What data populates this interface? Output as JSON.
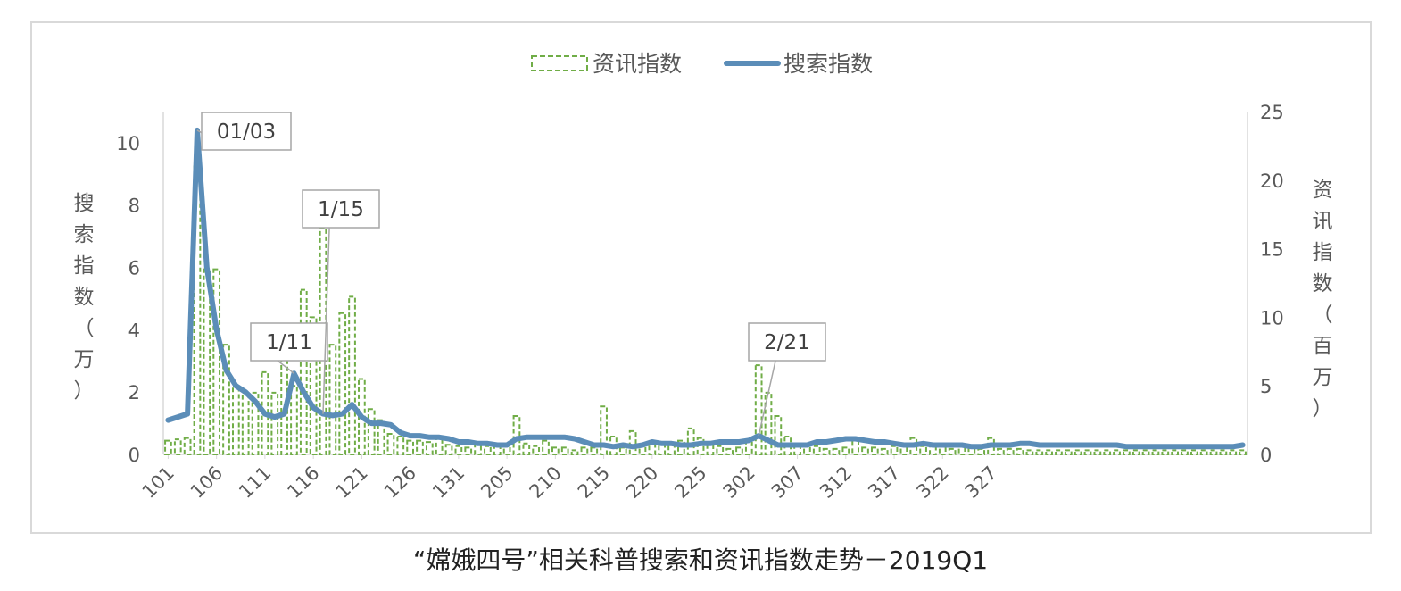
{
  "caption": "“嫦娥四号”相关科普搜索和资讯指数走势－2019Q1",
  "colors": {
    "news_bar": "#70ad47",
    "search_line": "#5b8db8",
    "axis_text": "#595959",
    "frame": "#d9d9d9"
  },
  "chart_data": {
    "type": "bar",
    "title": "",
    "left_axis_label": "搜索指数（万）",
    "right_axis_label": "资讯指数（百万）",
    "left_ylim": [
      0,
      11
    ],
    "right_ylim": [
      0,
      25
    ],
    "left_ticks": [
      "0",
      "2",
      "4",
      "6",
      "8",
      "10"
    ],
    "right_ticks": [
      "0",
      "5",
      "10",
      "15",
      "20",
      "25"
    ],
    "x_tick_labels": [
      "101",
      "106",
      "111",
      "116",
      "121",
      "126",
      "131",
      "205",
      "210",
      "215",
      "220",
      "225",
      "302",
      "307",
      "312",
      "317",
      "322",
      "327"
    ],
    "x_tick_every": 5,
    "legend": [
      {
        "name": "资讯指数",
        "style": "dashed-bar"
      },
      {
        "name": "搜索指数",
        "style": "line"
      }
    ],
    "series": [
      {
        "name": "资讯指数",
        "kind": "bar",
        "axis": "right",
        "values": [
          1.0,
          1.1,
          1.2,
          21.0,
          13.5,
          13.5,
          8.0,
          5.0,
          4.5,
          4.5,
          6.0,
          4.5,
          7.0,
          5.0,
          12.0,
          10.0,
          16.5,
          8.0,
          10.3,
          11.5,
          5.5,
          3.3,
          2.5,
          1.5,
          1.3,
          1.0,
          1.0,
          0.9,
          1.2,
          0.7,
          0.6,
          0.5,
          0.7,
          0.6,
          0.8,
          0.6,
          2.8,
          0.8,
          0.6,
          1.0,
          0.5,
          0.5,
          0.3,
          0.5,
          0.5,
          3.5,
          1.3,
          0.5,
          1.7,
          0.6,
          0.9,
          0.9,
          0.9,
          1.0,
          1.9,
          1.2,
          0.8,
          0.6,
          0.4,
          0.5,
          1.0,
          6.5,
          4.5,
          2.8,
          1.3,
          0.8,
          0.6,
          0.6,
          0.4,
          0.4,
          0.5,
          1.1,
          0.5,
          0.5,
          0.4,
          0.6,
          0.6,
          1.2,
          0.6,
          0.7,
          0.6,
          0.4,
          0.6,
          0.5,
          0.4,
          1.2,
          0.4,
          0.4,
          0.4,
          0.3,
          0.3,
          0.3,
          0.3,
          0.3,
          0.3,
          0.3,
          0.3,
          0.3,
          0.3,
          0.3,
          0.3,
          0.3,
          0.3,
          0.3,
          0.3,
          0.3,
          0.3,
          0.3,
          0.3,
          0.3,
          0.3,
          0.3
        ]
      },
      {
        "name": "搜索指数",
        "kind": "line",
        "axis": "left",
        "values": [
          1.1,
          1.2,
          1.3,
          10.4,
          6.0,
          4.0,
          2.7,
          2.2,
          2.0,
          1.7,
          1.3,
          1.2,
          1.3,
          2.6,
          2.0,
          1.5,
          1.3,
          1.25,
          1.3,
          1.6,
          1.2,
          1.0,
          1.0,
          0.95,
          0.7,
          0.6,
          0.6,
          0.55,
          0.55,
          0.5,
          0.4,
          0.4,
          0.35,
          0.35,
          0.3,
          0.3,
          0.5,
          0.55,
          0.55,
          0.55,
          0.55,
          0.55,
          0.5,
          0.4,
          0.3,
          0.3,
          0.25,
          0.3,
          0.25,
          0.3,
          0.4,
          0.35,
          0.35,
          0.3,
          0.3,
          0.35,
          0.35,
          0.4,
          0.4,
          0.4,
          0.45,
          0.6,
          0.45,
          0.3,
          0.3,
          0.3,
          0.3,
          0.4,
          0.4,
          0.45,
          0.5,
          0.5,
          0.45,
          0.4,
          0.4,
          0.35,
          0.3,
          0.3,
          0.35,
          0.3,
          0.3,
          0.3,
          0.3,
          0.25,
          0.25,
          0.3,
          0.3,
          0.3,
          0.35,
          0.35,
          0.3,
          0.3,
          0.3,
          0.3,
          0.3,
          0.3,
          0.3,
          0.3,
          0.3,
          0.25,
          0.25,
          0.25,
          0.25,
          0.25,
          0.25,
          0.25,
          0.25,
          0.25,
          0.25,
          0.25,
          0.25,
          0.3
        ]
      }
    ],
    "annotations": [
      {
        "text": "01/03",
        "index": 3
      },
      {
        "text": "1/11",
        "index": 13
      },
      {
        "text": "1/15",
        "index": 16
      },
      {
        "text": "2/21",
        "index": 61
      }
    ]
  }
}
